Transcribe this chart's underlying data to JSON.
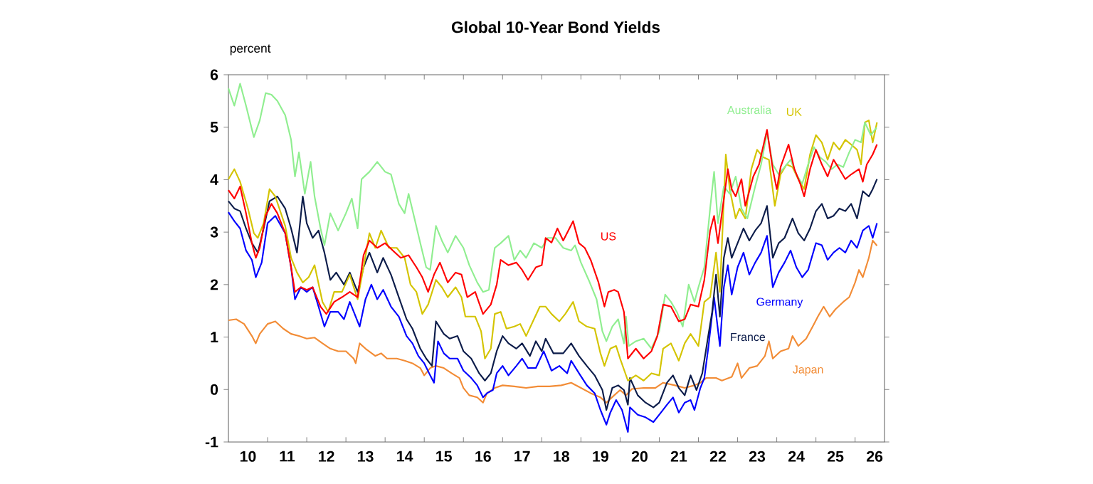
{
  "chart_data": {
    "type": "line",
    "title": "Global 10-Year Bond Yields",
    "ylabel": "percent",
    "xlim": [
      "2010-01-01",
      "2026-10-02"
    ],
    "ylim": [
      -1,
      6
    ],
    "yticks": [
      -1,
      0,
      1,
      2,
      3,
      4,
      5,
      6
    ],
    "xticks": [
      {
        "value": "2010-07-02",
        "label": "10"
      },
      {
        "value": "2011-07-02",
        "label": "11"
      },
      {
        "value": "2012-07-02",
        "label": "12"
      },
      {
        "value": "2013-07-02",
        "label": "13"
      },
      {
        "value": "2014-07-02",
        "label": "14"
      },
      {
        "value": "2015-07-02",
        "label": "15"
      },
      {
        "value": "2016-07-02",
        "label": "16"
      },
      {
        "value": "2017-07-02",
        "label": "17"
      },
      {
        "value": "2018-07-02",
        "label": "18"
      },
      {
        "value": "2019-07-02",
        "label": "19"
      },
      {
        "value": "2020-07-02",
        "label": "20"
      },
      {
        "value": "2021-07-02",
        "label": "21"
      },
      {
        "value": "2022-07-02",
        "label": "22"
      },
      {
        "value": "2023-07-02",
        "label": "23"
      },
      {
        "value": "2024-07-02",
        "label": "24"
      },
      {
        "value": "2025-07-02",
        "label": "25"
      },
      {
        "value": "2026-07-02",
        "label": "26"
      },
      {
        "value": "2011-01-01",
        "label": null
      },
      {
        "value": "2012-01-01",
        "label": null
      },
      {
        "value": "2013-01-01",
        "label": null
      },
      {
        "value": "2014-01-01",
        "label": null
      },
      {
        "value": "2015-01-01",
        "label": null
      },
      {
        "value": "2016-01-01",
        "label": null
      },
      {
        "value": "2017-01-01",
        "label": null
      },
      {
        "value": "2018-01-01",
        "label": null
      },
      {
        "value": "2019-01-01",
        "label": null
      },
      {
        "value": "2020-01-01",
        "label": null
      },
      {
        "value": "2021-01-01",
        "label": null
      },
      {
        "value": "2022-01-01",
        "label": null
      },
      {
        "value": "2023-01-01",
        "label": null
      },
      {
        "value": "2024-01-01",
        "label": null
      },
      {
        "value": "2025-01-01",
        "label": null
      },
      {
        "value": "2026-01-01",
        "label": null
      }
    ],
    "series": [
      {
        "name": "Japan",
        "color": "#f28c36",
        "x": [
          "2010-01-01",
          "2010-03-14",
          "2010-05-27",
          "2010-08-08",
          "2010-09-13",
          "2010-10-20",
          "2011-01-01",
          "2011-03-14",
          "2011-05-27",
          "2011-08-08",
          "2011-10-20",
          "2012-01-01",
          "2012-03-14",
          "2012-05-27",
          "2012-08-08",
          "2012-10-20",
          "2013-01-01",
          "2013-03-14",
          "2013-04-02",
          "2013-05-09",
          "2013-07-02",
          "2013-10-02",
          "2013-11-25",
          "2014-01-19",
          "2014-04-20",
          "2014-07-02",
          "2014-09-13",
          "2014-11-25",
          "2015-01-01",
          "2015-02-25",
          "2015-04-20",
          "2015-07-02",
          "2015-09-13",
          "2015-11-25",
          "2016-01-01",
          "2016-02-25",
          "2016-05-09",
          "2016-07-02",
          "2016-08-08",
          "2016-10-20",
          "2017-01-01",
          "2017-04-20",
          "2017-08-08",
          "2017-11-25",
          "2018-03-14",
          "2018-07-02",
          "2018-10-02",
          "2019-01-01",
          "2019-04-02",
          "2019-07-02",
          "2019-08-26",
          "2019-11-07",
          "2020-01-01",
          "2020-02-25",
          "2020-04-20",
          "2020-08-08",
          "2020-11-25",
          "2021-02-06",
          "2021-05-27",
          "2021-08-26",
          "2021-11-25",
          "2022-01-19",
          "2022-03-14",
          "2022-06-14",
          "2022-08-08",
          "2022-11-07",
          "2023-01-01",
          "2023-02-06",
          "2023-04-20",
          "2023-07-02",
          "2023-09-13",
          "2023-10-20",
          "2023-11-25",
          "2024-02-06",
          "2024-04-20",
          "2024-05-27",
          "2024-07-20",
          "2024-10-02",
          "2024-12-14",
          "2025-01-19",
          "2025-03-14",
          "2025-05-09",
          "2025-07-02",
          "2025-09-13",
          "2025-11-07",
          "2026-01-01",
          "2026-02-06",
          "2026-03-14",
          "2026-05-09",
          "2026-06-14",
          "2026-07-24"
        ],
        "values": [
          1.32,
          1.34,
          1.25,
          1.02,
          0.88,
          1.06,
          1.25,
          1.3,
          1.16,
          1.06,
          1.02,
          0.97,
          0.99,
          0.88,
          0.78,
          0.73,
          0.73,
          0.59,
          0.5,
          0.88,
          0.78,
          0.64,
          0.69,
          0.59,
          0.59,
          0.55,
          0.5,
          0.41,
          0.27,
          0.41,
          0.45,
          0.41,
          0.31,
          0.22,
          0.03,
          -0.11,
          -0.15,
          -0.25,
          -0.07,
          0.03,
          0.08,
          0.06,
          0.03,
          0.06,
          0.06,
          0.08,
          0.13,
          0.03,
          -0.07,
          -0.15,
          -0.25,
          -0.11,
          -0.01,
          -0.11,
          0.01,
          0.03,
          0.03,
          0.13,
          0.08,
          0.03,
          0.08,
          0.13,
          0.22,
          0.22,
          0.17,
          0.24,
          0.5,
          0.22,
          0.41,
          0.45,
          0.64,
          0.92,
          0.59,
          0.73,
          0.78,
          1.02,
          0.83,
          0.97,
          1.25,
          1.39,
          1.58,
          1.39,
          1.53,
          1.67,
          1.76,
          2.04,
          2.28,
          2.14,
          2.51,
          2.84,
          2.74
        ]
      },
      {
        "name": "Germany",
        "color": "#0000ff",
        "x": [
          "2010-01-01",
          "2010-02-25",
          "2010-04-20",
          "2010-06-14",
          "2010-08-08",
          "2010-09-13",
          "2010-11-07",
          "2011-01-01",
          "2011-03-14",
          "2011-06-14",
          "2011-08-08",
          "2011-09-13",
          "2011-11-07",
          "2012-01-01",
          "2012-02-25",
          "2012-04-20",
          "2012-06-14",
          "2012-08-08",
          "2012-10-20",
          "2012-12-14",
          "2013-02-06",
          "2013-05-09",
          "2013-07-02",
          "2013-08-26",
          "2013-10-20",
          "2013-12-14",
          "2014-02-25",
          "2014-05-09",
          "2014-07-20",
          "2014-09-13",
          "2014-11-07",
          "2015-01-01",
          "2015-02-25",
          "2015-04-02",
          "2015-05-09",
          "2015-07-02",
          "2015-08-26",
          "2015-11-07",
          "2016-01-01",
          "2016-03-14",
          "2016-05-09",
          "2016-07-02",
          "2016-08-08",
          "2016-10-02",
          "2016-11-07",
          "2017-01-01",
          "2017-02-25",
          "2017-05-09",
          "2017-07-02",
          "2017-08-26",
          "2017-11-07",
          "2018-01-19",
          "2018-04-02",
          "2018-06-14",
          "2018-08-26",
          "2018-10-02",
          "2018-12-14",
          "2019-02-25",
          "2019-05-09",
          "2019-07-02",
          "2019-08-26",
          "2019-10-02",
          "2019-11-25",
          "2020-01-19",
          "2020-03-14",
          "2020-04-02",
          "2020-06-14",
          "2020-08-26",
          "2020-11-07",
          "2021-01-01",
          "2021-03-14",
          "2021-05-09",
          "2021-07-02",
          "2021-08-26",
          "2021-10-20",
          "2021-11-25",
          "2022-01-19",
          "2022-02-25",
          "2022-04-02",
          "2022-05-27",
          "2022-07-20",
          "2022-08-26",
          "2022-10-02",
          "2022-11-07",
          "2023-01-01",
          "2023-02-25",
          "2023-04-20",
          "2023-06-14",
          "2023-08-08",
          "2023-10-02",
          "2023-11-25",
          "2024-01-19",
          "2024-03-14",
          "2024-05-09",
          "2024-07-02",
          "2024-08-26",
          "2024-10-20",
          "2025-01-01",
          "2025-02-25",
          "2025-04-20",
          "2025-06-14",
          "2025-08-08",
          "2025-10-02",
          "2025-11-25",
          "2026-01-19",
          "2026-03-14",
          "2026-05-09",
          "2026-06-14",
          "2026-07-24"
        ],
        "values": [
          3.38,
          3.21,
          3.07,
          2.65,
          2.47,
          2.14,
          2.42,
          3.17,
          3.31,
          2.98,
          2.33,
          1.72,
          1.95,
          1.86,
          1.95,
          1.58,
          1.2,
          1.48,
          1.48,
          1.34,
          1.67,
          1.2,
          1.72,
          2.0,
          1.72,
          1.9,
          1.58,
          1.39,
          1.02,
          0.88,
          0.64,
          0.5,
          0.27,
          0.13,
          0.92,
          0.69,
          0.59,
          0.59,
          0.36,
          0.22,
          0.08,
          -0.15,
          -0.07,
          -0.01,
          0.31,
          0.45,
          0.27,
          0.45,
          0.59,
          0.41,
          0.41,
          0.73,
          0.36,
          0.45,
          0.31,
          0.55,
          0.31,
          0.08,
          -0.07,
          -0.39,
          -0.67,
          -0.44,
          -0.2,
          -0.39,
          -0.81,
          -0.34,
          -0.48,
          -0.53,
          -0.62,
          -0.48,
          -0.29,
          -0.15,
          -0.44,
          -0.25,
          -0.2,
          -0.39,
          0.03,
          0.22,
          0.78,
          1.76,
          0.83,
          1.95,
          2.37,
          1.81,
          2.33,
          2.61,
          2.19,
          2.42,
          2.61,
          2.93,
          1.95,
          2.23,
          2.42,
          2.65,
          2.33,
          2.14,
          2.28,
          2.79,
          2.75,
          2.47,
          2.61,
          2.7,
          2.61,
          2.84,
          2.7,
          3.03,
          3.12,
          2.89,
          3.17
        ]
      },
      {
        "name": "France",
        "color": "#0c1c4a",
        "x": [
          "2010-01-01",
          "2010-02-25",
          "2010-04-20",
          "2010-06-14",
          "2010-08-08",
          "2010-10-02",
          "2010-11-25",
          "2011-01-19",
          "2011-04-02",
          "2011-06-14",
          "2011-08-08",
          "2011-10-02",
          "2011-11-25",
          "2012-01-01",
          "2012-02-25",
          "2012-04-20",
          "2012-06-14",
          "2012-08-08",
          "2012-10-02",
          "2012-12-14",
          "2013-02-06",
          "2013-04-20",
          "2013-06-14",
          "2013-08-08",
          "2013-10-20",
          "2013-12-14",
          "2014-02-25",
          "2014-05-09",
          "2014-07-20",
          "2014-09-13",
          "2014-11-25",
          "2015-01-19",
          "2015-03-14",
          "2015-04-20",
          "2015-07-02",
          "2015-08-26",
          "2015-11-07",
          "2016-01-01",
          "2016-03-14",
          "2016-05-27",
          "2016-07-20",
          "2016-09-13",
          "2016-11-07",
          "2017-01-01",
          "2017-02-25",
          "2017-05-09",
          "2017-07-02",
          "2017-09-13",
          "2017-11-07",
          "2018-01-01",
          "2018-02-06",
          "2018-04-20",
          "2018-07-20",
          "2018-10-02",
          "2018-12-14",
          "2019-02-25",
          "2019-05-09",
          "2019-07-20",
          "2019-08-26",
          "2019-10-20",
          "2019-12-14",
          "2020-02-06",
          "2020-03-14",
          "2020-04-02",
          "2020-06-14",
          "2020-08-26",
          "2020-11-07",
          "2021-01-01",
          "2021-03-14",
          "2021-05-09",
          "2021-07-02",
          "2021-08-26",
          "2021-10-20",
          "2021-12-14",
          "2022-02-06",
          "2022-04-02",
          "2022-05-09",
          "2022-06-14",
          "2022-07-20",
          "2022-08-26",
          "2022-10-02",
          "2022-11-07",
          "2023-01-01",
          "2023-02-25",
          "2023-04-20",
          "2023-06-14",
          "2023-08-08",
          "2023-10-02",
          "2023-11-25",
          "2024-01-19",
          "2024-03-14",
          "2024-05-27",
          "2024-07-20",
          "2024-09-13",
          "2024-11-07",
          "2025-01-01",
          "2025-02-25",
          "2025-04-20",
          "2025-06-14",
          "2025-08-08",
          "2025-10-02",
          "2025-11-25",
          "2026-01-19",
          "2026-03-14",
          "2026-05-09",
          "2026-06-14",
          "2026-07-24"
        ],
        "values": [
          3.59,
          3.45,
          3.4,
          3.07,
          2.79,
          2.61,
          3.07,
          3.59,
          3.68,
          3.45,
          3.07,
          2.61,
          3.68,
          3.17,
          2.89,
          3.03,
          2.61,
          2.09,
          2.23,
          2.0,
          2.23,
          1.86,
          2.33,
          2.61,
          2.23,
          2.51,
          2.19,
          1.76,
          1.34,
          1.16,
          0.78,
          0.59,
          0.45,
          1.3,
          1.06,
          0.97,
          1.02,
          0.73,
          0.59,
          0.31,
          0.17,
          0.31,
          0.73,
          1.02,
          0.88,
          0.78,
          0.88,
          0.64,
          0.92,
          0.73,
          0.97,
          0.69,
          0.69,
          0.88,
          0.64,
          0.45,
          0.27,
          -0.01,
          -0.39,
          0.03,
          0.08,
          -0.01,
          -0.29,
          0.22,
          -0.11,
          -0.25,
          -0.34,
          -0.25,
          0.13,
          0.27,
          0.03,
          -0.11,
          0.27,
          -0.01,
          0.31,
          1.02,
          1.48,
          2.19,
          1.39,
          2.51,
          2.89,
          2.51,
          2.79,
          3.07,
          2.84,
          3.03,
          3.17,
          3.5,
          2.51,
          2.79,
          2.89,
          3.26,
          2.98,
          2.84,
          3.07,
          3.4,
          3.54,
          3.26,
          3.31,
          3.45,
          3.4,
          3.54,
          3.26,
          3.78,
          3.68,
          3.82,
          4.01
        ]
      },
      {
        "name": "UK",
        "color": "#d4c400",
        "x": [
          "2010-01-01",
          "2010-02-25",
          "2010-04-20",
          "2010-07-02",
          "2010-08-26",
          "2010-10-02",
          "2010-11-25",
          "2011-01-19",
          "2011-03-14",
          "2011-06-14",
          "2011-08-08",
          "2011-10-02",
          "2011-11-25",
          "2012-01-19",
          "2012-03-14",
          "2012-05-27",
          "2012-07-20",
          "2012-09-13",
          "2012-11-25",
          "2013-02-06",
          "2013-04-20",
          "2013-06-14",
          "2013-08-08",
          "2013-10-02",
          "2013-11-25",
          "2014-02-06",
          "2014-04-20",
          "2014-07-02",
          "2014-08-26",
          "2014-10-20",
          "2014-12-14",
          "2015-02-06",
          "2015-04-20",
          "2015-06-14",
          "2015-08-08",
          "2015-10-20",
          "2015-12-14",
          "2016-01-19",
          "2016-04-20",
          "2016-06-14",
          "2016-07-20",
          "2016-09-13",
          "2016-10-20",
          "2016-12-14",
          "2017-02-06",
          "2017-04-20",
          "2017-06-14",
          "2017-08-08",
          "2017-10-20",
          "2017-12-14",
          "2018-02-06",
          "2018-04-02",
          "2018-06-14",
          "2018-08-08",
          "2018-10-20",
          "2018-12-14",
          "2019-02-25",
          "2019-05-09",
          "2019-07-02",
          "2019-08-08",
          "2019-10-02",
          "2019-11-25",
          "2020-01-01",
          "2020-03-14",
          "2020-05-27",
          "2020-08-08",
          "2020-10-20",
          "2021-01-01",
          "2021-02-06",
          "2021-04-20",
          "2021-07-02",
          "2021-08-26",
          "2021-10-20",
          "2022-01-01",
          "2022-02-25",
          "2022-04-20",
          "2022-06-14",
          "2022-07-20",
          "2022-09-13",
          "2022-10-20",
          "2022-12-14",
          "2023-01-19",
          "2023-03-14",
          "2023-05-09",
          "2023-07-02",
          "2023-08-26",
          "2023-10-20",
          "2023-12-14",
          "2024-02-06",
          "2024-04-02",
          "2024-05-27",
          "2024-07-20",
          "2024-09-13",
          "2024-11-07",
          "2025-01-01",
          "2025-02-25",
          "2025-04-20",
          "2025-06-14",
          "2025-08-08",
          "2025-10-02",
          "2025-11-25",
          "2026-01-19",
          "2026-02-25",
          "2026-04-02",
          "2026-05-09",
          "2026-06-14",
          "2026-07-24"
        ],
        "values": [
          4.01,
          4.2,
          3.96,
          3.45,
          2.98,
          2.89,
          3.17,
          3.82,
          3.68,
          3.12,
          2.51,
          2.23,
          2.04,
          2.14,
          2.37,
          1.67,
          1.48,
          1.86,
          1.86,
          2.19,
          1.72,
          2.33,
          2.98,
          2.7,
          3.03,
          2.7,
          2.7,
          2.51,
          2.0,
          1.86,
          1.44,
          1.62,
          2.09,
          1.95,
          1.76,
          1.95,
          1.76,
          1.39,
          1.39,
          1.11,
          0.59,
          0.78,
          1.44,
          1.48,
          1.16,
          1.2,
          1.25,
          1.02,
          1.34,
          1.58,
          1.58,
          1.44,
          1.3,
          1.44,
          1.67,
          1.3,
          1.2,
          1.16,
          0.69,
          0.45,
          0.78,
          0.83,
          0.59,
          0.17,
          0.27,
          0.17,
          0.31,
          0.27,
          0.78,
          0.88,
          0.55,
          0.88,
          1.06,
          0.83,
          1.67,
          1.76,
          2.61,
          1.86,
          4.48,
          3.82,
          3.26,
          3.45,
          3.26,
          4.2,
          4.57,
          4.43,
          4.38,
          3.5,
          4.1,
          4.29,
          4.24,
          4.01,
          3.82,
          4.48,
          4.85,
          4.71,
          4.38,
          4.71,
          4.57,
          4.76,
          4.67,
          4.57,
          4.29,
          5.09,
          5.13,
          4.71,
          5.09
        ]
      },
      {
        "name": "Australia",
        "color": "#90ee90",
        "x": [
          "2010-01-01",
          "2010-02-25",
          "2010-04-20",
          "2010-06-14",
          "2010-08-26",
          "2010-10-20",
          "2010-12-14",
          "2011-02-06",
          "2011-04-02",
          "2011-06-14",
          "2011-08-08",
          "2011-09-13",
          "2011-10-20",
          "2011-12-14",
          "2012-02-06",
          "2012-03-14",
          "2012-05-09",
          "2012-06-14",
          "2012-08-08",
          "2012-10-20",
          "2013-01-01",
          "2013-02-25",
          "2013-04-20",
          "2013-05-27",
          "2013-08-08",
          "2013-10-20",
          "2014-01-01",
          "2014-02-25",
          "2014-05-09",
          "2014-07-02",
          "2014-08-08",
          "2014-10-02",
          "2014-11-25",
          "2015-01-19",
          "2015-02-25",
          "2015-04-20",
          "2015-06-14",
          "2015-08-08",
          "2015-10-20",
          "2016-01-01",
          "2016-02-25",
          "2016-05-09",
          "2016-07-02",
          "2016-08-26",
          "2016-10-20",
          "2016-12-14",
          "2017-02-25",
          "2017-04-20",
          "2017-06-14",
          "2017-08-08",
          "2017-10-20",
          "2018-01-01",
          "2018-02-25",
          "2018-05-09",
          "2018-07-20",
          "2018-10-02",
          "2018-11-07",
          "2019-01-01",
          "2019-03-14",
          "2019-05-27",
          "2019-07-20",
          "2019-08-26",
          "2019-10-20",
          "2019-12-14",
          "2020-02-06",
          "2020-02-25",
          "2020-03-22",
          "2020-05-27",
          "2020-08-08",
          "2020-10-20",
          "2021-01-01",
          "2021-02-25",
          "2021-04-20",
          "2021-06-14",
          "2021-08-08",
          "2021-10-02",
          "2021-11-25",
          "2022-01-01",
          "2022-02-25",
          "2022-04-20",
          "2022-05-27",
          "2022-07-02",
          "2022-08-26",
          "2022-10-20",
          "2022-12-14",
          "2023-02-06",
          "2023-04-02",
          "2023-06-14",
          "2023-08-08",
          "2023-10-02",
          "2023-11-25",
          "2024-01-19",
          "2024-03-14",
          "2024-05-09",
          "2024-07-02",
          "2024-08-26",
          "2024-10-20",
          "2024-12-14",
          "2025-02-06",
          "2025-04-02",
          "2025-05-27",
          "2025-07-20",
          "2025-09-13",
          "2025-11-07",
          "2026-01-01",
          "2026-02-25",
          "2026-04-02",
          "2026-05-27",
          "2026-07-20"
        ],
        "values": [
          5.74,
          5.41,
          5.83,
          5.41,
          4.81,
          5.13,
          5.65,
          5.62,
          5.5,
          5.23,
          4.76,
          4.06,
          4.52,
          3.73,
          4.34,
          3.68,
          3.07,
          2.75,
          3.36,
          3.03,
          3.36,
          3.64,
          3.07,
          4.01,
          4.15,
          4.34,
          4.15,
          4.1,
          3.54,
          3.36,
          3.73,
          3.26,
          2.79,
          2.33,
          2.28,
          3.12,
          2.84,
          2.61,
          2.93,
          2.7,
          2.37,
          2.04,
          1.86,
          1.9,
          2.7,
          2.79,
          2.93,
          2.47,
          2.65,
          2.51,
          2.79,
          2.7,
          2.89,
          2.89,
          2.7,
          2.65,
          2.75,
          2.42,
          2.09,
          1.72,
          1.11,
          0.92,
          1.2,
          1.34,
          0.88,
          1.39,
          0.83,
          0.92,
          0.97,
          0.78,
          1.11,
          1.81,
          1.67,
          1.48,
          1.2,
          2.0,
          1.67,
          1.95,
          2.33,
          3.45,
          4.15,
          3.17,
          3.87,
          3.73,
          4.06,
          3.45,
          3.26,
          3.87,
          4.29,
          4.9,
          4.29,
          4.1,
          4.24,
          4.38,
          4.1,
          3.92,
          4.29,
          4.62,
          4.43,
          4.34,
          4.2,
          4.29,
          4.24,
          4.52,
          4.76,
          4.71,
          5.09,
          4.85,
          4.99
        ]
      },
      {
        "name": "US",
        "color": "#ff0000",
        "x": [
          "2010-01-01",
          "2010-02-25",
          "2010-04-20",
          "2010-06-14",
          "2010-08-08",
          "2010-09-13",
          "2010-10-20",
          "2010-12-14",
          "2011-02-06",
          "2011-04-02",
          "2011-06-14",
          "2011-08-08",
          "2011-09-13",
          "2011-11-07",
          "2012-01-01",
          "2012-02-25",
          "2012-05-09",
          "2012-07-02",
          "2012-09-13",
          "2012-11-25",
          "2013-02-06",
          "2013-04-20",
          "2013-06-14",
          "2013-08-08",
          "2013-10-20",
          "2014-01-01",
          "2014-03-14",
          "2014-05-27",
          "2014-08-08",
          "2014-10-20",
          "2014-12-14",
          "2015-02-06",
          "2015-04-02",
          "2015-05-27",
          "2015-08-08",
          "2015-10-20",
          "2015-12-14",
          "2016-02-06",
          "2016-04-20",
          "2016-07-02",
          "2016-09-13",
          "2016-11-07",
          "2016-12-14",
          "2017-02-25",
          "2017-05-09",
          "2017-07-02",
          "2017-08-26",
          "2017-11-07",
          "2018-01-01",
          "2018-02-06",
          "2018-04-02",
          "2018-05-27",
          "2018-07-20",
          "2018-10-20",
          "2018-12-14",
          "2019-02-06",
          "2019-04-02",
          "2019-06-14",
          "2019-08-08",
          "2019-09-13",
          "2019-11-07",
          "2019-12-14",
          "2020-02-06",
          "2020-03-14",
          "2020-05-27",
          "2020-08-08",
          "2020-10-20",
          "2020-12-14",
          "2021-02-06",
          "2021-04-20",
          "2021-07-02",
          "2021-08-26",
          "2021-10-20",
          "2022-01-01",
          "2022-02-25",
          "2022-04-20",
          "2022-05-27",
          "2022-07-02",
          "2022-08-08",
          "2022-10-02",
          "2022-11-07",
          "2022-12-14",
          "2023-02-06",
          "2023-03-14",
          "2023-05-27",
          "2023-07-20",
          "2023-10-02",
          "2023-11-25",
          "2024-01-01",
          "2024-02-06",
          "2024-04-20",
          "2024-06-14",
          "2024-08-08",
          "2024-09-13",
          "2024-11-07",
          "2025-01-01",
          "2025-02-25",
          "2025-04-20",
          "2025-06-14",
          "2025-08-08",
          "2025-10-02",
          "2025-11-25",
          "2026-02-06",
          "2026-03-14",
          "2026-04-20",
          "2026-06-14",
          "2026-07-24"
        ],
        "values": [
          3.8,
          3.64,
          3.87,
          3.36,
          2.79,
          2.51,
          2.7,
          3.31,
          3.54,
          3.36,
          2.98,
          2.33,
          1.86,
          1.95,
          1.9,
          1.95,
          1.58,
          1.44,
          1.67,
          1.76,
          1.86,
          1.76,
          2.56,
          2.84,
          2.7,
          2.79,
          2.65,
          2.51,
          2.56,
          2.33,
          2.14,
          1.86,
          2.19,
          2.42,
          2.04,
          2.23,
          2.19,
          1.76,
          1.86,
          1.44,
          1.62,
          2.0,
          2.47,
          2.37,
          2.42,
          2.28,
          2.09,
          2.33,
          2.37,
          2.89,
          2.8,
          3.07,
          2.84,
          3.21,
          2.79,
          2.7,
          2.47,
          2.04,
          1.58,
          1.86,
          1.9,
          1.86,
          1.48,
          0.59,
          0.78,
          0.59,
          0.73,
          1.02,
          1.62,
          1.58,
          1.3,
          1.34,
          1.62,
          1.58,
          2.09,
          3.03,
          3.31,
          2.79,
          3.36,
          4.2,
          3.82,
          3.68,
          4.01,
          3.5,
          4.06,
          4.29,
          4.95,
          4.2,
          3.82,
          4.24,
          4.67,
          4.2,
          3.92,
          3.68,
          4.2,
          4.57,
          4.29,
          4.06,
          4.38,
          4.2,
          4.01,
          4.1,
          4.2,
          3.96,
          4.29,
          4.48,
          4.67
        ]
      }
    ]
  }
}
